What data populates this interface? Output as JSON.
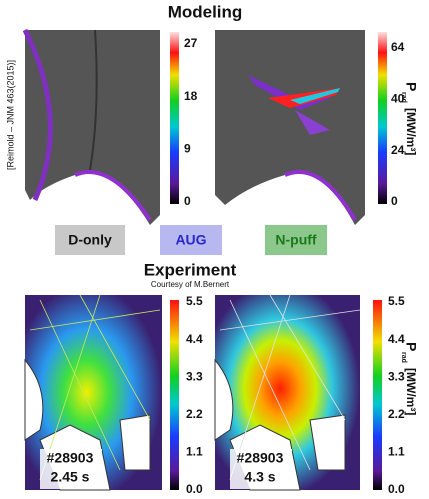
{
  "modeling": {
    "title": "Modeling",
    "credit": "[Reimold – JNM 463(2015)]",
    "panels": [
      {
        "colorbar_ticks": [
          "27",
          "18",
          "9",
          "0"
        ]
      },
      {
        "colorbar_ticks": [
          "64",
          "40",
          "24",
          "0"
        ]
      }
    ]
  },
  "axis_label": {
    "symbol": "P",
    "subscript": "rad",
    "unit": "[MW/m³]"
  },
  "legend": [
    "D-only",
    "AUG",
    "N-puff"
  ],
  "experiment": {
    "title": "Experiment",
    "credit": "Courtesy of M.Bernert",
    "colorbar_ticks": [
      "5.5",
      "4.4",
      "3.3",
      "2.2",
      "1.1",
      "0.0"
    ],
    "panels": [
      {
        "shot": "#28903",
        "time": "2.45 s"
      },
      {
        "shot": "#28903",
        "time": "4.3 s"
      }
    ]
  }
}
